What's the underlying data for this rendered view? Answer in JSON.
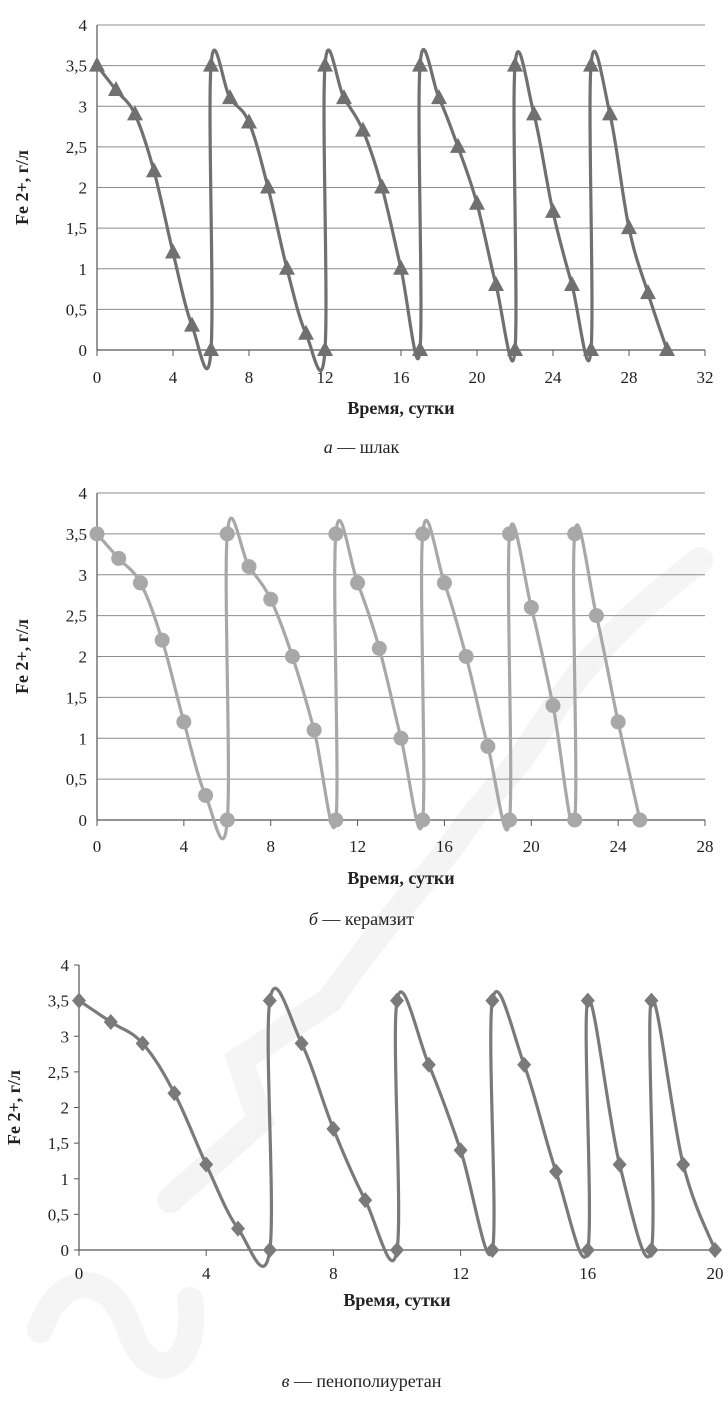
{
  "chart_data": [
    {
      "type": "line",
      "caption_letter": "а",
      "caption_text": " — шлак",
      "xlabel": "Время, сутки",
      "ylabel": "Fe 2+, г/л",
      "xlim": [
        0,
        32
      ],
      "ylim": [
        0,
        4
      ],
      "x_ticks": [
        "0",
        "4",
        "8",
        "12",
        "16",
        "20",
        "24",
        "28",
        "32"
      ],
      "y_ticks": [
        "0",
        "0,5",
        "1",
        "1,5",
        "2",
        "2,5",
        "3",
        "3,5",
        "4"
      ],
      "grid": true,
      "marker": "triangle",
      "color": "#707070",
      "series": [
        {
          "points": [
            [
              0,
              3.5
            ],
            [
              1,
              3.2
            ],
            [
              2,
              2.9
            ],
            [
              3,
              2.2
            ],
            [
              4,
              1.2
            ],
            [
              5,
              0.3
            ],
            [
              6,
              0
            ],
            [
              6,
              3.5
            ],
            [
              7,
              3.1
            ],
            [
              8,
              2.8
            ],
            [
              9,
              2.0
            ],
            [
              10,
              1.0
            ],
            [
              11,
              0.2
            ],
            [
              12,
              0
            ],
            [
              12,
              3.5
            ],
            [
              13,
              3.1
            ],
            [
              14,
              2.7
            ],
            [
              15,
              2.0
            ],
            [
              16,
              1.0
            ],
            [
              17,
              0
            ],
            [
              17,
              3.5
            ],
            [
              18,
              3.1
            ],
            [
              19,
              2.5
            ],
            [
              20,
              1.8
            ],
            [
              21,
              0.8
            ],
            [
              22,
              0
            ],
            [
              22,
              3.5
            ],
            [
              23,
              2.9
            ],
            [
              24,
              1.7
            ],
            [
              25,
              0.8
            ],
            [
              26,
              0
            ],
            [
              26,
              3.5
            ],
            [
              27,
              2.9
            ],
            [
              28,
              1.5
            ],
            [
              29,
              0.7
            ],
            [
              30,
              0
            ]
          ]
        }
      ]
    },
    {
      "type": "line",
      "caption_letter": "б",
      "caption_text": " — керамзит",
      "xlabel": "Время, сутки",
      "ylabel": "Fe 2+, г/л",
      "xlim": [
        0,
        28
      ],
      "ylim": [
        0,
        4
      ],
      "x_ticks": [
        "0",
        "4",
        "8",
        "12",
        "16",
        "20",
        "24",
        "28"
      ],
      "y_ticks": [
        "0",
        "0,5",
        "1",
        "1,5",
        "2",
        "2,5",
        "3",
        "3,5",
        "4"
      ],
      "grid": true,
      "marker": "circle",
      "color": "#a8a8a8",
      "series": [
        {
          "points": [
            [
              0,
              3.5
            ],
            [
              1,
              3.2
            ],
            [
              2,
              2.9
            ],
            [
              3,
              2.2
            ],
            [
              4,
              1.2
            ],
            [
              5,
              0.3
            ],
            [
              6,
              0
            ],
            [
              6,
              3.5
            ],
            [
              7,
              3.1
            ],
            [
              8,
              2.7
            ],
            [
              9,
              2.0
            ],
            [
              10,
              1.1
            ],
            [
              11,
              0
            ],
            [
              11,
              3.5
            ],
            [
              12,
              2.9
            ],
            [
              13,
              2.1
            ],
            [
              14,
              1.0
            ],
            [
              15,
              0
            ],
            [
              15,
              3.5
            ],
            [
              16,
              2.9
            ],
            [
              17,
              2.0
            ],
            [
              18,
              0.9
            ],
            [
              19,
              0
            ],
            [
              19,
              3.5
            ],
            [
              20,
              2.6
            ],
            [
              21,
              1.4
            ],
            [
              22,
              0
            ],
            [
              22,
              3.5
            ],
            [
              23,
              2.5
            ],
            [
              24,
              1.2
            ],
            [
              25,
              0
            ]
          ]
        }
      ]
    },
    {
      "type": "line",
      "caption_letter": "в",
      "caption_text": " — пенополиуретан",
      "xlabel": "Время, сутки",
      "ylabel": "Fe 2+, г/л",
      "xlim": [
        0,
        20
      ],
      "ylim": [
        0,
        4
      ],
      "x_ticks": [
        "0",
        "4",
        "8",
        "12",
        "16",
        "20"
      ],
      "y_ticks": [
        "0",
        "0,5",
        "1",
        "1,5",
        "2",
        "2,5",
        "3",
        "3,5",
        "4"
      ],
      "grid": false,
      "marker": "diamond",
      "color": "#7a7a7a",
      "series": [
        {
          "points": [
            [
              0,
              3.5
            ],
            [
              1,
              3.2
            ],
            [
              2,
              2.9
            ],
            [
              3,
              2.2
            ],
            [
              4,
              1.2
            ],
            [
              5,
              0.3
            ],
            [
              6,
              0
            ],
            [
              6,
              3.5
            ],
            [
              7,
              2.9
            ],
            [
              8,
              1.7
            ],
            [
              9,
              0.7
            ],
            [
              10,
              0
            ],
            [
              10,
              3.5
            ],
            [
              11,
              2.6
            ],
            [
              12,
              1.4
            ],
            [
              13,
              0
            ],
            [
              13,
              3.5
            ],
            [
              14,
              2.6
            ],
            [
              15,
              1.1
            ],
            [
              16,
              0
            ],
            [
              16,
              3.5
            ],
            [
              17,
              1.2
            ],
            [
              18,
              0
            ],
            [
              18,
              3.5
            ],
            [
              19,
              1.2
            ],
            [
              20,
              0
            ]
          ]
        }
      ]
    }
  ],
  "colors": {
    "axis": "#555555",
    "grid": "#8c8c8c",
    "text": "#222222",
    "watermark": "#ececec"
  }
}
